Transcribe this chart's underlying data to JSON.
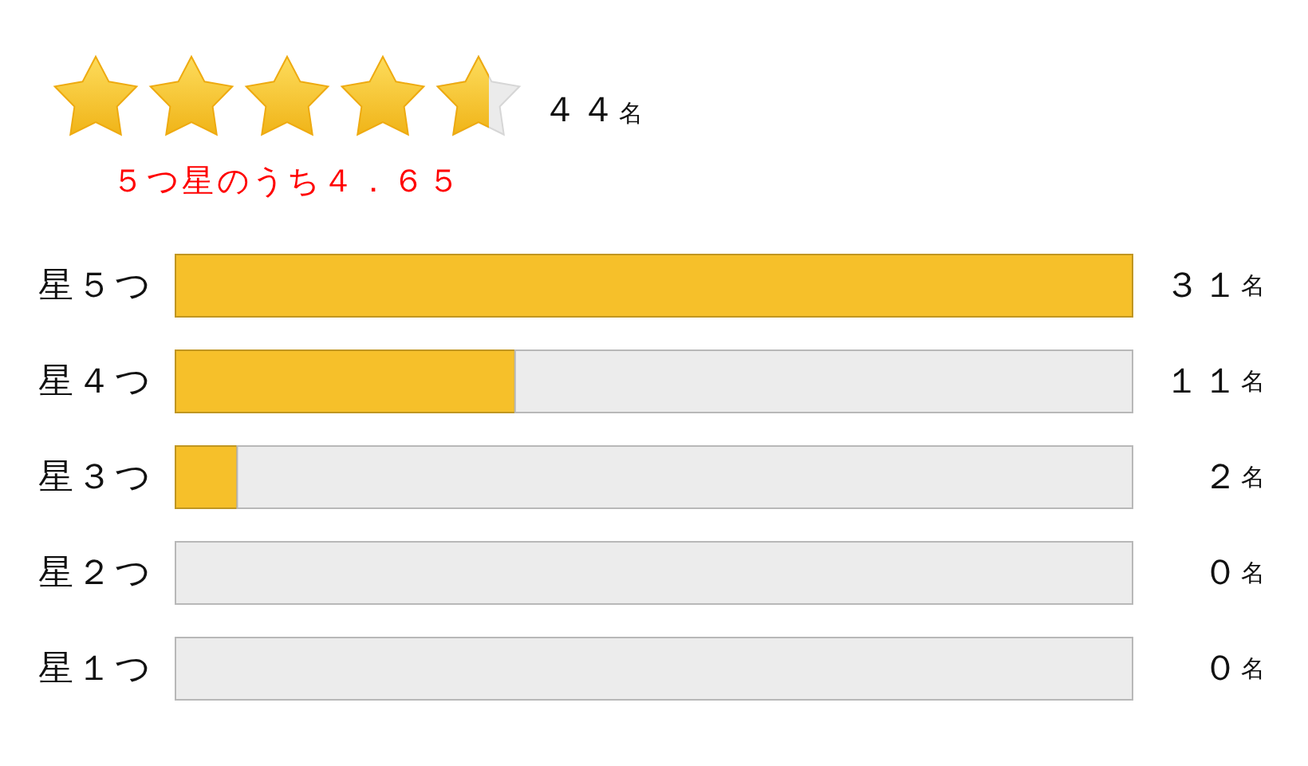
{
  "chart_data": {
    "type": "bar",
    "orientation": "horizontal",
    "stacked": true,
    "categories": [
      "星５つ",
      "星４つ",
      "星３つ",
      "星２つ",
      "星１つ"
    ],
    "series": [
      {
        "color": "#f6c02a",
        "values": [
          31,
          11,
          2,
          0,
          0
        ],
        "value_labels": [
          "３１名",
          "１１名",
          "２名",
          "０名",
          "０名"
        ]
      },
      {
        "color": "#ececec",
        "values": [
          0,
          20,
          29,
          31,
          31
        ]
      }
    ],
    "xlim": [
      0,
      31
    ],
    "annotations": [
      "４４名",
      "５つ星のうち４．６５"
    ],
    "tick_labels": "y"
  }
}
